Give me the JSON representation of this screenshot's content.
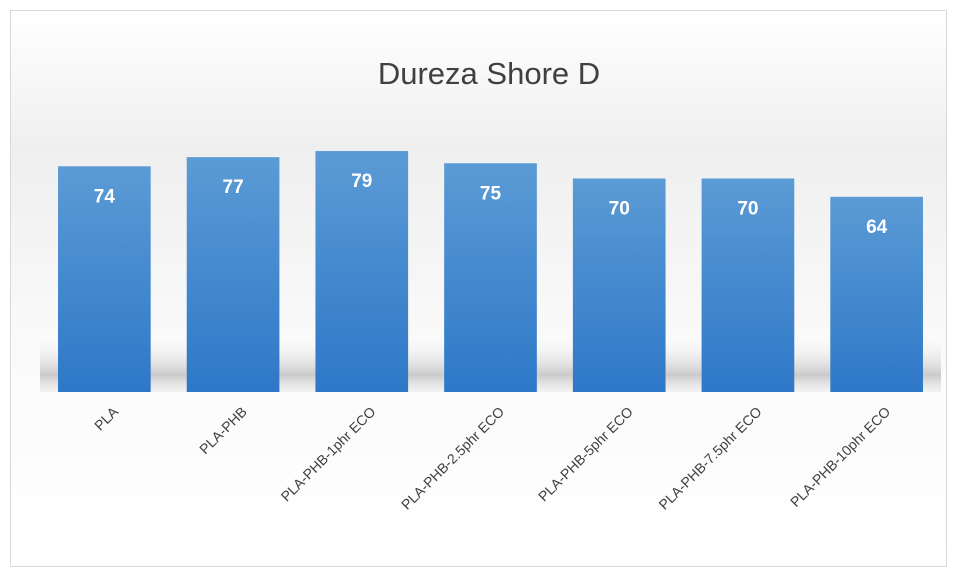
{
  "chart_data": {
    "type": "bar",
    "title": "Dureza Shore D",
    "categories": [
      "PLA",
      "PLA-PHB",
      "PLA-PHB-1phr ECO",
      "PLA-PHB-2.5phr ECO",
      "PLA-PHB-5phr ECO",
      "PLA-PHB-7.5phr ECO",
      "PLA-PHB-10phr ECO"
    ],
    "values": [
      74,
      77,
      79,
      75,
      70,
      70,
      64
    ],
    "color": "#4a8fd6"
  }
}
